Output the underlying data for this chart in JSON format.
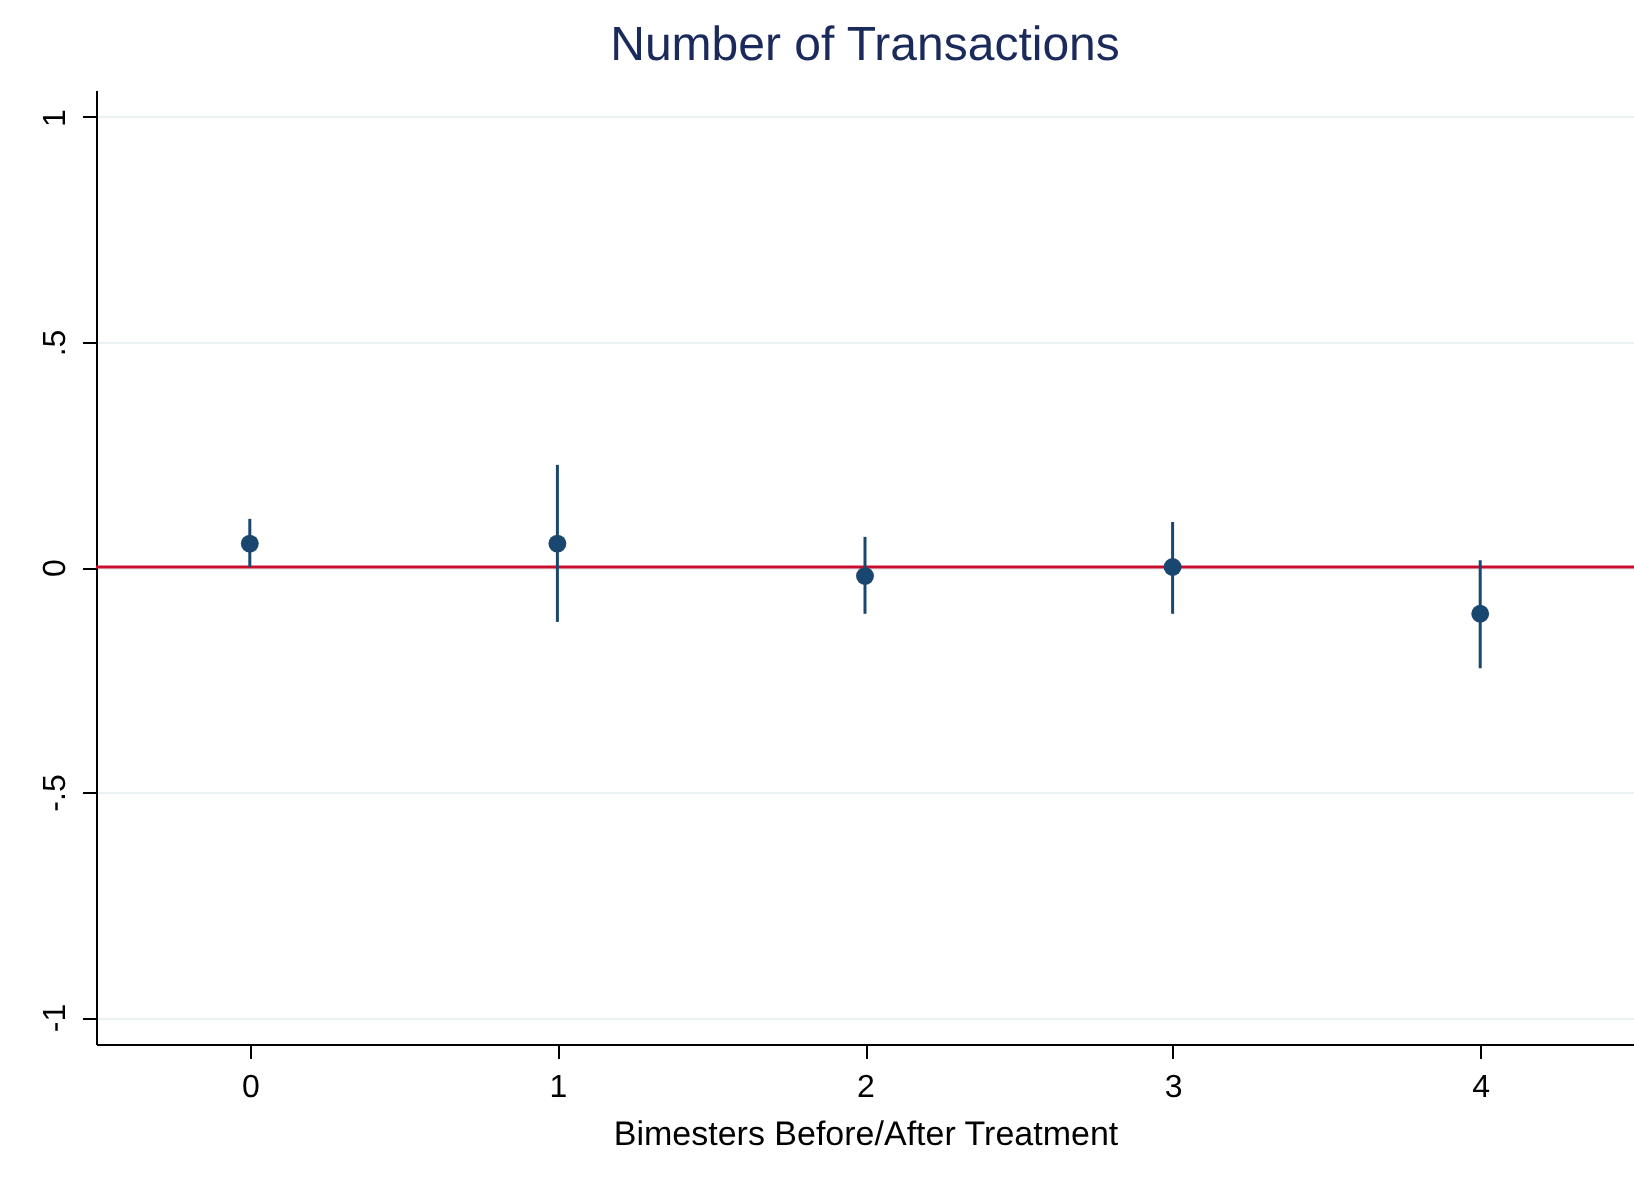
{
  "chart_data": {
    "type": "scatter",
    "title": "Number of Transactions",
    "xlabel": "Bimesters Before/After Treatment",
    "x": [
      0,
      1,
      2,
      3,
      4
    ],
    "series": [
      {
        "color": "#1a476f",
        "values": [
          0.052,
          0.052,
          -0.02,
          0.0,
          -0.104
        ],
        "errors": [
          [
            0.0,
            0.107
          ],
          [
            -0.122,
            0.227
          ],
          [
            -0.104,
            0.067
          ],
          [
            -0.104,
            0.1
          ],
          [
            -0.225,
            0.015
          ]
        ]
      }
    ],
    "xlim": [
      -0.5,
      4.5
    ],
    "xticks": [
      0,
      1,
      2,
      3,
      4
    ],
    "ylim": [
      -1.06,
      1.06
    ],
    "yticks": [
      -1,
      {
        "value": -0.5,
        "label": "-.5"
      },
      0,
      {
        "value": 0.5,
        "label": ".5"
      },
      1
    ],
    "ref_lines": [
      {
        "axis": "y",
        "value": 0,
        "color": "#c8102e"
      }
    ],
    "grid": "y",
    "marker": "circle"
  }
}
